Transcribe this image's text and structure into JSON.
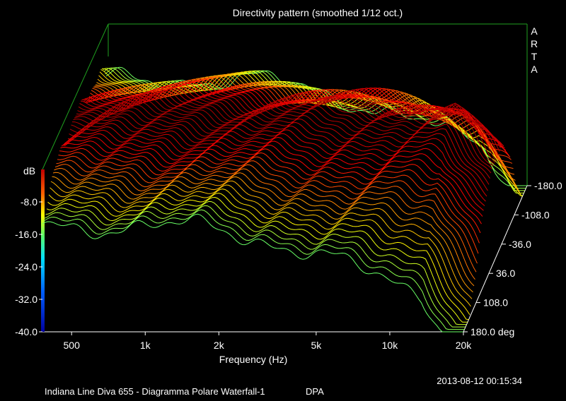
{
  "chart_data": {
    "type": "waterfall",
    "title": "Directivity pattern (smoothed 1/12 oct.)",
    "brand": "ARTA",
    "xlabel": "Frequency (Hz)",
    "x_ticks": [
      {
        "v": 500,
        "label": "500"
      },
      {
        "v": 1000,
        "label": "1k"
      },
      {
        "v": 2000,
        "label": "2k"
      },
      {
        "v": 5000,
        "label": "5k"
      },
      {
        "v": 10000,
        "label": "10k"
      },
      {
        "v": 20000,
        "label": "20k"
      }
    ],
    "xlim": [
      380,
      20000
    ],
    "x_scale": "log",
    "zlabel": "dB",
    "z_ticks": [
      {
        "v": -8,
        "label": "-8.0"
      },
      {
        "v": -16,
        "label": "-16.0"
      },
      {
        "v": -24,
        "label": "-24.0"
      },
      {
        "v": -32,
        "label": "-32.0"
      },
      {
        "v": -40,
        "label": "-40.0"
      }
    ],
    "zlim": [
      -40,
      0
    ],
    "angle_ticks": [
      {
        "v": -180,
        "label": "-180.0"
      },
      {
        "v": -108,
        "label": "-108.0"
      },
      {
        "v": -36,
        "label": "-36.0"
      },
      {
        "v": 36,
        "label": "36.0"
      },
      {
        "v": 108,
        "label": "108.0"
      },
      {
        "v": 180,
        "label": "180.0 deg"
      }
    ],
    "angle_range": [
      -180,
      180
    ],
    "colors": [
      "#0000a0",
      "#0040ff",
      "#00c8ff",
      "#40ff80",
      "#ffff00",
      "#ff8000",
      "#ff0000",
      "#a00000"
    ]
  },
  "footer": {
    "timestamp": "2013-08-12  00:15:34",
    "caption": "Indiana Line Diva 655 - Diagramma Polare Waterfall-1",
    "mode": "DPA"
  }
}
